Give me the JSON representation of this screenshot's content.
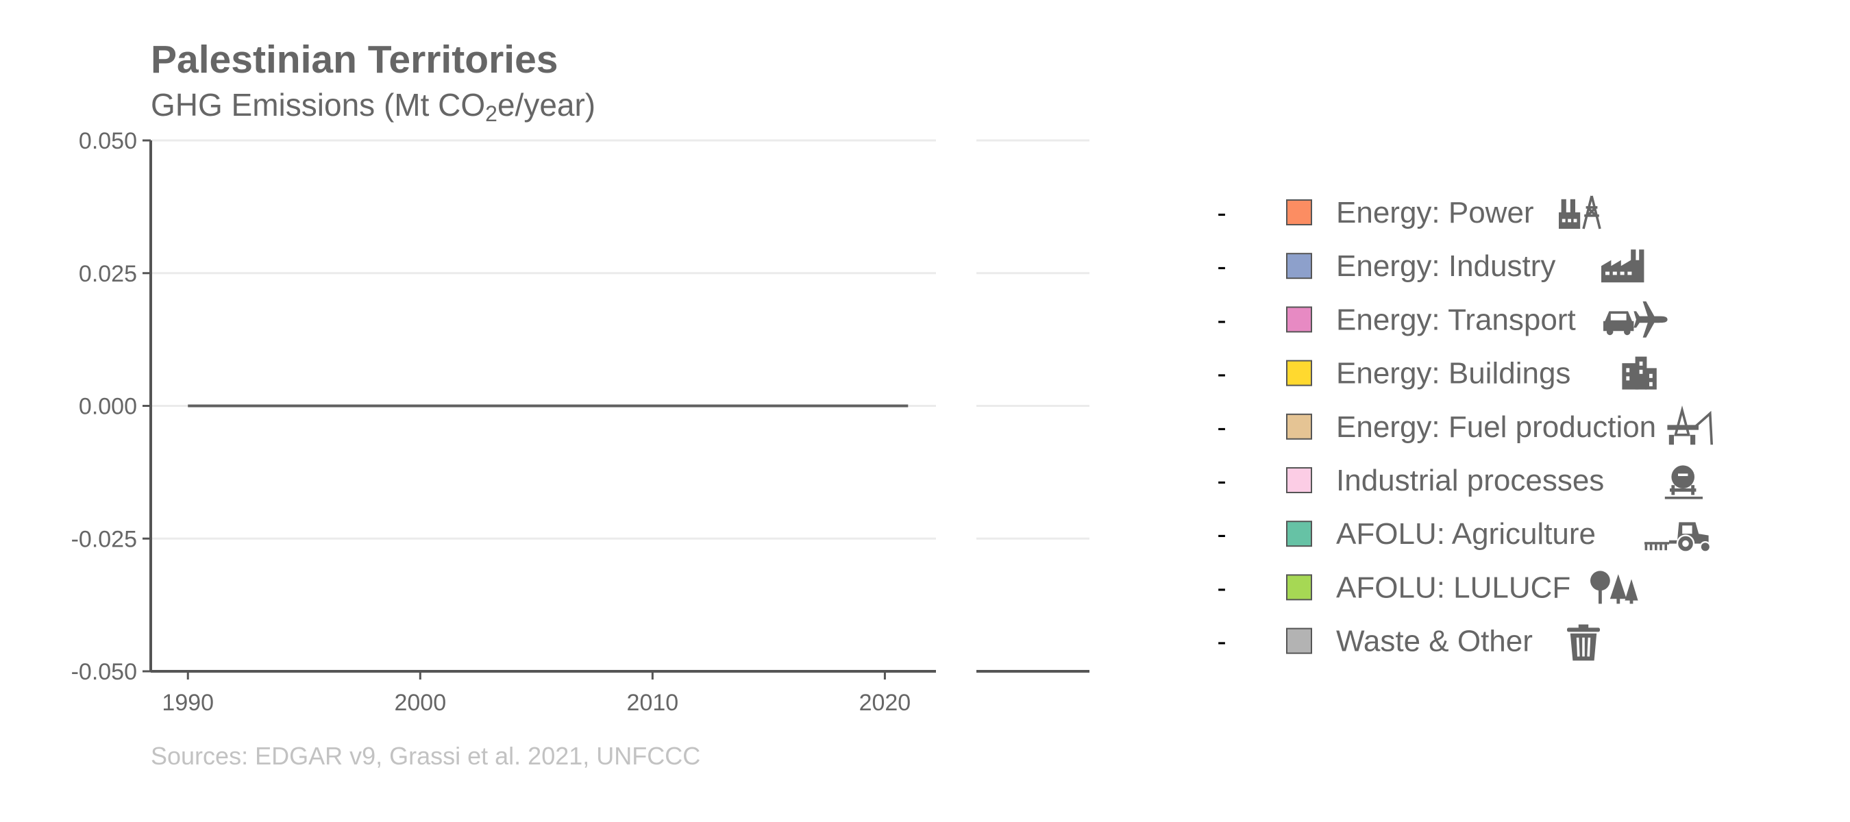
{
  "header": {
    "title": "Palestinian Territories",
    "subtitle_pre": "GHG Emissions (Mt CO",
    "subtitle_sub": "2",
    "subtitle_post": "e/year)"
  },
  "footer": {
    "source": "Sources: EDGAR v9, Grassi et al. 2021, UNFCCC"
  },
  "chart_data": {
    "type": "area",
    "title": "Palestinian Territories",
    "subtitle": "GHG Emissions (Mt CO2e/year)",
    "xlabel": "",
    "ylabel": "",
    "xlim": [
      1988.4,
      2022.2
    ],
    "ylim": [
      -0.05,
      0.05
    ],
    "x_ticks": [
      1990,
      2000,
      2010,
      2020
    ],
    "y_ticks": [
      0.05,
      0.025,
      0,
      -0.025,
      -0.05
    ],
    "y_tick_labels": [
      "0.050",
      "0.025",
      "0.000",
      "-0.025",
      "-0.050"
    ],
    "grid": "horizontal",
    "legend_position": "right",
    "total_line": {
      "x": [
        1990,
        2021
      ],
      "y": [
        0,
        0
      ],
      "color": "#606060"
    },
    "series": [
      {
        "name": "Energy: Power",
        "color": "#fc8d62",
        "icon": "power-plant-icon",
        "values": [
          0,
          0
        ]
      },
      {
        "name": "Energy: Industry",
        "color": "#8da0cb",
        "icon": "factory-icon",
        "values": [
          0,
          0
        ]
      },
      {
        "name": "Energy: Transport",
        "color": "#e78ac3",
        "icon": "car-plane-icon",
        "values": [
          0,
          0
        ]
      },
      {
        "name": "Energy: Buildings",
        "color": "#ffd92f",
        "icon": "buildings-icon",
        "values": [
          0,
          0
        ]
      },
      {
        "name": "Energy: Fuel production",
        "color": "#e5c494",
        "icon": "oil-rig-icon",
        "values": [
          0,
          0
        ]
      },
      {
        "name": "Industrial processes",
        "color": "#fccde5",
        "icon": "cement-mixer-icon",
        "values": [
          0,
          0
        ]
      },
      {
        "name": "AFOLU: Agriculture",
        "color": "#66c2a5",
        "icon": "tractor-icon",
        "values": [
          0,
          0
        ]
      },
      {
        "name": "AFOLU: LULUCF",
        "color": "#a6d854",
        "icon": "trees-icon",
        "values": [
          0,
          0
        ]
      },
      {
        "name": "Waste & Other",
        "color": "#b3b3b3",
        "icon": "trash-icon",
        "values": [
          0,
          0
        ]
      }
    ],
    "legend_markers": [
      "-",
      "-",
      "-",
      "-",
      "-",
      "-",
      "-",
      "-",
      "-"
    ]
  }
}
